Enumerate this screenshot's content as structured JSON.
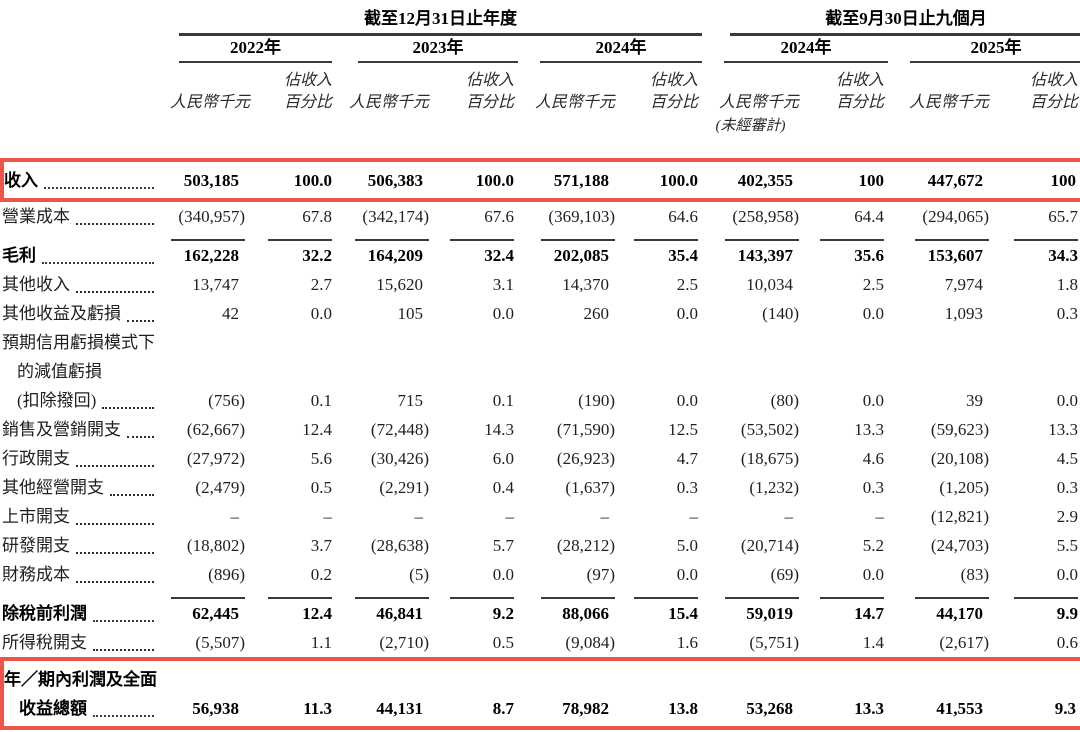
{
  "page": {
    "background": "#ffffff",
    "text_color": "#1f1f1f",
    "highlight_color": "#ec544c",
    "rule_color": "#3a3a3a"
  },
  "header": {
    "annual_title": "截至12月31日止年度",
    "interim_title": "截至9月30日止九個月",
    "year_labels": [
      "2022年",
      "2023年",
      "2024年",
      "2024年",
      "2025年"
    ],
    "currency_label": "人民幣千元",
    "pct_label_line1": "佔收入",
    "pct_label_line2": "百分比",
    "unaudited_note": "(未經審計)"
  },
  "table": {
    "rows": [
      {
        "lines": [
          "收入"
        ],
        "bold": true,
        "highlight": true,
        "values": [
          "503,185",
          "100.0",
          "506,383",
          "100.0",
          "571,188",
          "100.0",
          "402,355",
          "100",
          "447,672",
          "100"
        ]
      },
      {
        "lines": [
          "營業成本"
        ],
        "rule_after": true,
        "values": [
          "(340,957)",
          "67.8",
          "(342,174)",
          "67.6",
          "(369,103)",
          "64.6",
          "(258,958)",
          "64.4",
          "(294,065)",
          "65.7"
        ]
      },
      {
        "lines": [
          "毛利"
        ],
        "bold": true,
        "values": [
          "162,228",
          "32.2",
          "164,209",
          "32.4",
          "202,085",
          "35.4",
          "143,397",
          "35.6",
          "153,607",
          "34.3"
        ]
      },
      {
        "lines": [
          "其他收入"
        ],
        "values": [
          "13,747",
          "2.7",
          "15,620",
          "3.1",
          "14,370",
          "2.5",
          "10,034",
          "2.5",
          "7,974",
          "1.8"
        ]
      },
      {
        "lines": [
          "其他收益及虧損"
        ],
        "values": [
          "42",
          "0.0",
          "105",
          "0.0",
          "260",
          "0.0",
          "(140)",
          "0.0",
          "1,093",
          "0.3"
        ]
      },
      {
        "lines": [
          "預期信用虧損模式下",
          "的減值虧損",
          "(扣除撥回)"
        ],
        "values": [
          "(756)",
          "0.1",
          "715",
          "0.1",
          "(190)",
          "0.0",
          "(80)",
          "0.0",
          "39",
          "0.0"
        ]
      },
      {
        "lines": [
          "銷售及營銷開支"
        ],
        "values": [
          "(62,667)",
          "12.4",
          "(72,448)",
          "14.3",
          "(71,590)",
          "12.5",
          "(53,502)",
          "13.3",
          "(59,623)",
          "13.3"
        ]
      },
      {
        "lines": [
          "行政開支"
        ],
        "values": [
          "(27,972)",
          "5.6",
          "(30,426)",
          "6.0",
          "(26,923)",
          "4.7",
          "(18,675)",
          "4.6",
          "(20,108)",
          "4.5"
        ]
      },
      {
        "lines": [
          "其他經營開支"
        ],
        "values": [
          "(2,479)",
          "0.5",
          "(2,291)",
          "0.4",
          "(1,637)",
          "0.3",
          "(1,232)",
          "0.3",
          "(1,205)",
          "0.3"
        ]
      },
      {
        "lines": [
          "上市開支"
        ],
        "values": [
          "–",
          "–",
          "–",
          "–",
          "–",
          "–",
          "–",
          "–",
          "(12,821)",
          "2.9"
        ]
      },
      {
        "lines": [
          "研發開支"
        ],
        "values": [
          "(18,802)",
          "3.7",
          "(28,638)",
          "5.7",
          "(28,212)",
          "5.0",
          "(20,714)",
          "5.2",
          "(24,703)",
          "5.5"
        ]
      },
      {
        "lines": [
          "財務成本"
        ],
        "rule_after": true,
        "values": [
          "(896)",
          "0.2",
          "(5)",
          "0.0",
          "(97)",
          "0.0",
          "(69)",
          "0.0",
          "(83)",
          "0.0"
        ]
      },
      {
        "lines": [
          "除稅前利潤"
        ],
        "bold": true,
        "values": [
          "62,445",
          "12.4",
          "46,841",
          "9.2",
          "88,066",
          "15.4",
          "59,019",
          "14.7",
          "44,170",
          "9.9"
        ]
      },
      {
        "lines": [
          "所得稅開支"
        ],
        "values": [
          "(5,507)",
          "1.1",
          "(2,710)",
          "0.5",
          "(9,084)",
          "1.6",
          "(5,751)",
          "1.4",
          "(2,617)",
          "0.6"
        ]
      },
      {
        "lines": [
          "年／期內利潤及全面",
          "收益總額"
        ],
        "bold": true,
        "highlight": true,
        "values": [
          "56,938",
          "11.3",
          "44,131",
          "8.7",
          "78,982",
          "13.8",
          "53,268",
          "13.3",
          "41,553",
          "9.3"
        ]
      }
    ]
  }
}
